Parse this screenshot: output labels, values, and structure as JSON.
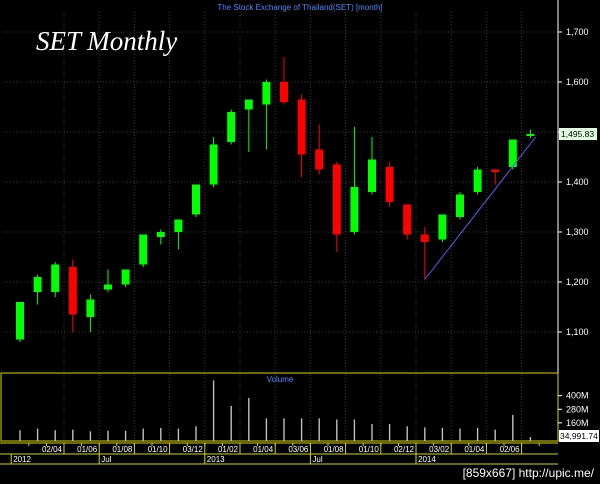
{
  "annotation": "SET Monthly",
  "source_label": "[859x667] http://upic.me/",
  "chart_data": {
    "type": "candlestick",
    "title": "The Stock Exchange of Thailand(SET) [month]",
    "volume_label": "Volume",
    "last_price_label": "1,495.83",
    "last_volume_label": "34,991.74",
    "y_ticks": [
      "1,100",
      "1,200",
      "1,300",
      "1,400",
      "1,500",
      "1,600",
      "1,700"
    ],
    "y_tick_values": [
      1100,
      1200,
      1300,
      1400,
      1500,
      1600,
      1700
    ],
    "ylim": [
      1020,
      1740
    ],
    "volume_ticks": [
      "400M",
      "280M",
      "160M"
    ],
    "volume_tick_values": [
      400,
      280,
      160
    ],
    "volume_ylim": [
      0,
      600
    ],
    "x_tick_labels": [
      {
        "index": 2,
        "label": "02/04"
      },
      {
        "index": 4,
        "label": "01/06"
      },
      {
        "index": 6,
        "label": "01/08"
      },
      {
        "index": 8,
        "label": "01/10"
      },
      {
        "index": 10,
        "label": "03/12"
      },
      {
        "index": 12,
        "label": "01/02"
      },
      {
        "index": 14,
        "label": "01/04"
      },
      {
        "index": 16,
        "label": "03/06"
      },
      {
        "index": 18,
        "label": "01/08"
      },
      {
        "index": 20,
        "label": "01/10"
      },
      {
        "index": 22,
        "label": "02/12"
      },
      {
        "index": 24,
        "label": "03/02"
      },
      {
        "index": 26,
        "label": "01/04"
      },
      {
        "index": 28,
        "label": "02/06"
      }
    ],
    "period_labels": [
      {
        "index": 0,
        "label": "2012"
      },
      {
        "index": 5,
        "label": "Jul"
      },
      {
        "index": 11,
        "label": "2013"
      },
      {
        "index": 17,
        "label": "Jul"
      },
      {
        "index": 23,
        "label": "2014"
      }
    ],
    "colors": {
      "up": "#00ff00",
      "down": "#ff0000",
      "grid": "#3a3a3a",
      "axis_text": "#ffffff",
      "title": "#4a8cff",
      "frame": "#d8d800",
      "trendline": "#5a5aff",
      "price_label_bg": "#dfffdf"
    },
    "candles": [
      {
        "open": 1085,
        "high": 1160,
        "low": 1080,
        "close": 1160,
        "volume": 95
      },
      {
        "open": 1180,
        "high": 1215,
        "low": 1155,
        "close": 1210,
        "volume": 110
      },
      {
        "open": 1180,
        "high": 1240,
        "low": 1170,
        "close": 1235,
        "volume": 95
      },
      {
        "open": 1230,
        "high": 1245,
        "low": 1100,
        "close": 1135,
        "volume": 100
      },
      {
        "open": 1130,
        "high": 1175,
        "low": 1100,
        "close": 1165,
        "volume": 85
      },
      {
        "open": 1185,
        "high": 1225,
        "low": 1180,
        "close": 1195,
        "volume": 90
      },
      {
        "open": 1195,
        "high": 1225,
        "low": 1190,
        "close": 1225,
        "volume": 90
      },
      {
        "open": 1235,
        "high": 1295,
        "low": 1230,
        "close": 1295,
        "volume": 110
      },
      {
        "open": 1290,
        "high": 1305,
        "low": 1275,
        "close": 1300,
        "volume": 115
      },
      {
        "open": 1300,
        "high": 1325,
        "low": 1265,
        "close": 1325,
        "volume": 110
      },
      {
        "open": 1335,
        "high": 1395,
        "low": 1330,
        "close": 1395,
        "volume": 130
      },
      {
        "open": 1395,
        "high": 1490,
        "low": 1390,
        "close": 1475,
        "volume": 535
      },
      {
        "open": 1480,
        "high": 1545,
        "low": 1475,
        "close": 1540,
        "volume": 310
      },
      {
        "open": 1545,
        "high": 1565,
        "low": 1460,
        "close": 1565,
        "volume": 380
      },
      {
        "open": 1555,
        "high": 1605,
        "low": 1465,
        "close": 1600,
        "volume": 200
      },
      {
        "open": 1600,
        "high": 1650,
        "low": 1555,
        "close": 1560,
        "volume": 200
      },
      {
        "open": 1565,
        "high": 1575,
        "low": 1410,
        "close": 1455,
        "volume": 200
      },
      {
        "open": 1465,
        "high": 1515,
        "low": 1415,
        "close": 1425,
        "volume": 200
      },
      {
        "open": 1435,
        "high": 1440,
        "low": 1260,
        "close": 1295,
        "volume": 190
      },
      {
        "open": 1300,
        "high": 1510,
        "low": 1295,
        "close": 1390,
        "volume": 190
      },
      {
        "open": 1380,
        "high": 1490,
        "low": 1375,
        "close": 1445,
        "volume": 150
      },
      {
        "open": 1430,
        "high": 1440,
        "low": 1350,
        "close": 1360,
        "volume": 150
      },
      {
        "open": 1355,
        "high": 1355,
        "low": 1285,
        "close": 1295,
        "volume": 130
      },
      {
        "open": 1295,
        "high": 1310,
        "low": 1205,
        "close": 1280,
        "volume": 120
      },
      {
        "open": 1285,
        "high": 1335,
        "low": 1280,
        "close": 1335,
        "volume": 115
      },
      {
        "open": 1330,
        "high": 1380,
        "low": 1325,
        "close": 1375,
        "volume": 110
      },
      {
        "open": 1380,
        "high": 1430,
        "low": 1375,
        "close": 1425,
        "volume": 115
      },
      {
        "open": 1425,
        "high": 1425,
        "low": 1395,
        "close": 1420,
        "volume": 100
      },
      {
        "open": 1430,
        "high": 1485,
        "low": 1425,
        "close": 1485,
        "volume": 230
      },
      {
        "open": 1492,
        "high": 1505,
        "low": 1488,
        "close": 1496,
        "volume": 35
      }
    ],
    "trendline": [
      {
        "index": 23,
        "value": 1205
      },
      {
        "index": 29.3,
        "value": 1490
      }
    ]
  }
}
